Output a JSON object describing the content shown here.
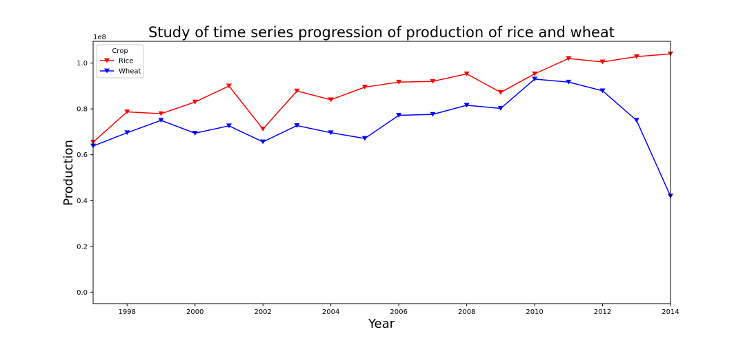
{
  "chart_data": {
    "type": "line",
    "title": "Study of time series progression of production of rice and wheat",
    "xlabel": "Year",
    "ylabel": "Production",
    "y_offset_text": "1e8",
    "xlim": [
      1997,
      2014
    ],
    "ylim": [
      -0.05,
      1.095
    ],
    "x_ticks": [
      1998,
      2000,
      2002,
      2004,
      2006,
      2008,
      2010,
      2012,
      2014
    ],
    "x_tick_labels": [
      "1998",
      "2000",
      "2002",
      "2004",
      "2006",
      "2008",
      "2010",
      "2012",
      "2014"
    ],
    "y_ticks": [
      0.0,
      0.2,
      0.4,
      0.6,
      0.8,
      1.0
    ],
    "y_tick_labels": [
      "0.0",
      "0.2",
      "0.4",
      "0.6",
      "0.8",
      "1.0"
    ],
    "grid": false,
    "legend": {
      "title": "Crop",
      "position": "top-left"
    },
    "marker": "triangle-down",
    "x": [
      1997,
      1998,
      1999,
      2000,
      2001,
      2002,
      2003,
      2004,
      2005,
      2006,
      2007,
      2008,
      2009,
      2010,
      2011,
      2012,
      2013,
      2014
    ],
    "series": [
      {
        "name": "Rice",
        "color": "#ff0000",
        "values": [
          0.655,
          0.787,
          0.779,
          0.83,
          0.9,
          0.712,
          0.878,
          0.84,
          0.895,
          0.917,
          0.92,
          0.953,
          0.872,
          0.953,
          1.02,
          1.005,
          1.028,
          1.04
        ]
      },
      {
        "name": "Wheat",
        "color": "#0000ff",
        "values": [
          0.638,
          0.696,
          0.75,
          0.694,
          0.726,
          0.656,
          0.727,
          0.696,
          0.671,
          0.772,
          0.776,
          0.816,
          0.802,
          0.93,
          0.917,
          0.879,
          0.75,
          0.419
        ]
      }
    ]
  }
}
